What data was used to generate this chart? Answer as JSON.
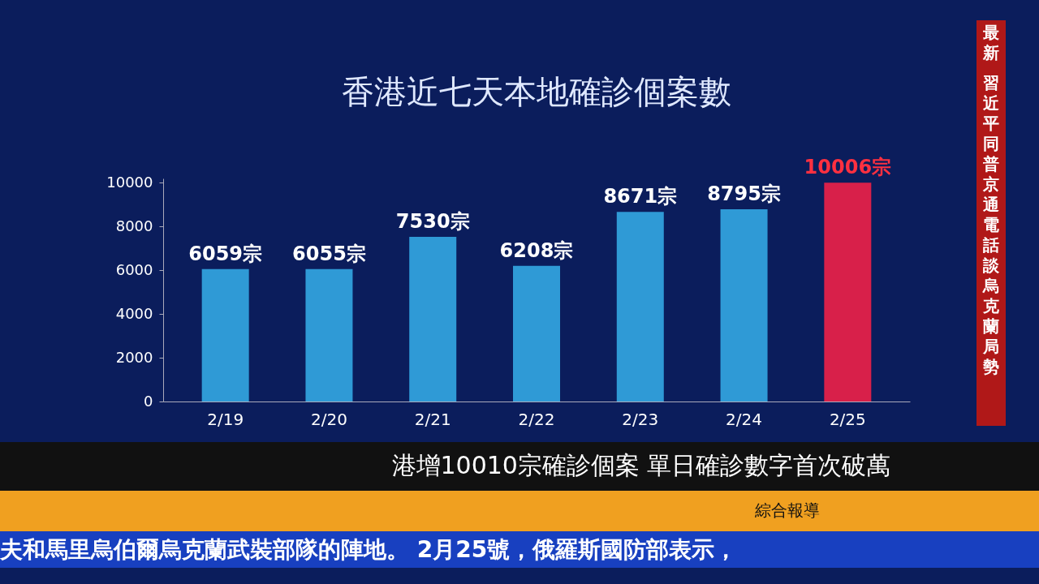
{
  "chart_data": {
    "type": "bar",
    "title": "香港近七天本地確診個案數",
    "categories": [
      "2/19",
      "2/20",
      "2/21",
      "2/22",
      "2/23",
      "2/24",
      "2/25"
    ],
    "values": [
      6059,
      6055,
      7530,
      6208,
      8671,
      8795,
      10006
    ],
    "value_labels": [
      "6059宗",
      "6055宗",
      "7530宗",
      "6208宗",
      "8671宗",
      "8795宗",
      "10006宗"
    ],
    "colors": [
      "#2f9ad6",
      "#2f9ad6",
      "#2f9ad6",
      "#2f9ad6",
      "#2f9ad6",
      "#2f9ad6",
      "#d8204a"
    ],
    "ylim": [
      0,
      10200
    ],
    "yticks": [
      0,
      2000,
      4000,
      6000,
      8000,
      10000
    ],
    "grid": false,
    "annotations": [
      "最新",
      "習近平同普京通電話談烏克蘭局勢",
      "港增10010宗確診個案 單日確診數字首次破萬",
      "綜合報導",
      "夫和馬里烏伯爾烏克蘭武裝部隊的陣地。 2月25號，俄羅斯國防部表示，"
    ]
  }
}
